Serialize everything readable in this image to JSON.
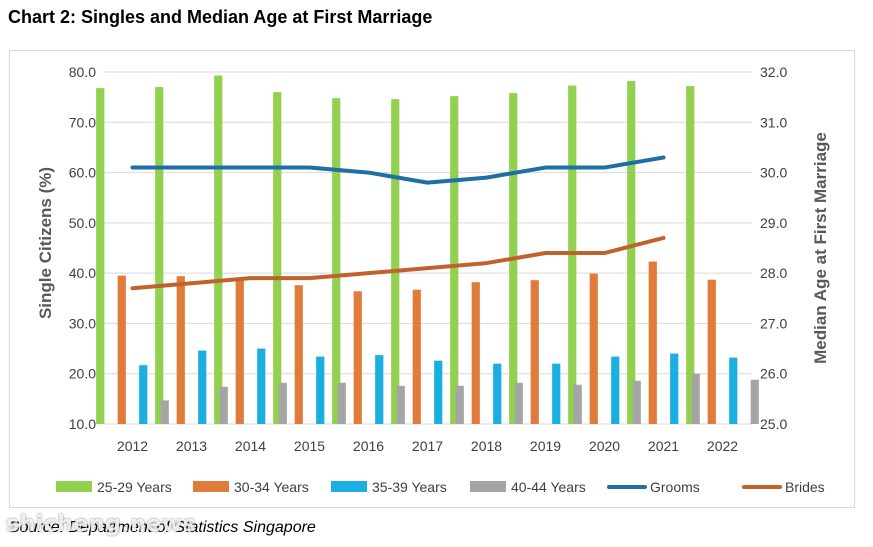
{
  "page": {
    "title": "Chart 2: Singles and Median Age at First Marriage",
    "source": "Source: Department of Statistics Singapore",
    "watermark": "shicheng.news"
  },
  "chart_data": {
    "type": "bar",
    "categories": [
      "2012",
      "2013",
      "2014",
      "2015",
      "2016",
      "2017",
      "2018",
      "2019",
      "2020",
      "2021",
      "2022"
    ],
    "ylabel": "Single  Citizens (%)",
    "y2label": "Median Age at First Marriage",
    "ylim": [
      10,
      80
    ],
    "y2lim": [
      25,
      32
    ],
    "yticks": [
      "10.0",
      "20.0",
      "30.0",
      "40.0",
      "50.0",
      "60.0",
      "70.0",
      "80.0"
    ],
    "y2ticks": [
      "25.0",
      "26.0",
      "27.0",
      "28.0",
      "29.0",
      "30.0",
      "31.0",
      "32.0"
    ],
    "grid": true,
    "legend_position": "bottom",
    "series": [
      {
        "name": "25-29 Years",
        "kind": "bar",
        "axis": "left",
        "color": "#92d050",
        "values": [
          76.8,
          77.0,
          79.3,
          76.0,
          74.8,
          74.6,
          75.2,
          75.8,
          77.3,
          78.2,
          77.2
        ]
      },
      {
        "name": "30-34 Years",
        "kind": "bar",
        "axis": "left",
        "color": "#e07b39",
        "values": [
          39.5,
          39.4,
          39.0,
          37.6,
          36.4,
          36.7,
          38.2,
          38.6,
          39.9,
          42.3,
          38.7
        ]
      },
      {
        "name": "35-39 Years",
        "kind": "bar",
        "axis": "left",
        "color": "#1aafe0",
        "values": [
          21.7,
          24.6,
          25.0,
          23.4,
          23.7,
          22.6,
          22.0,
          22.0,
          23.4,
          24.0,
          23.2
        ]
      },
      {
        "name": "40-44 Years",
        "kind": "bar",
        "axis": "left",
        "color": "#a5a5a5",
        "values": [
          14.7,
          17.4,
          18.2,
          18.2,
          17.6,
          17.6,
          18.2,
          17.8,
          18.6,
          20.0,
          18.8
        ]
      },
      {
        "name": "Grooms",
        "kind": "line",
        "axis": "right",
        "color": "#1f6fa5",
        "values": [
          30.1,
          30.1,
          30.1,
          30.1,
          30.0,
          29.8,
          29.9,
          30.1,
          30.1,
          30.3,
          null
        ]
      },
      {
        "name": "Brides",
        "kind": "line",
        "axis": "right",
        "color": "#c0622b",
        "values": [
          27.7,
          27.8,
          27.9,
          27.9,
          28.0,
          28.1,
          28.2,
          28.4,
          28.4,
          28.7,
          null
        ]
      }
    ]
  }
}
